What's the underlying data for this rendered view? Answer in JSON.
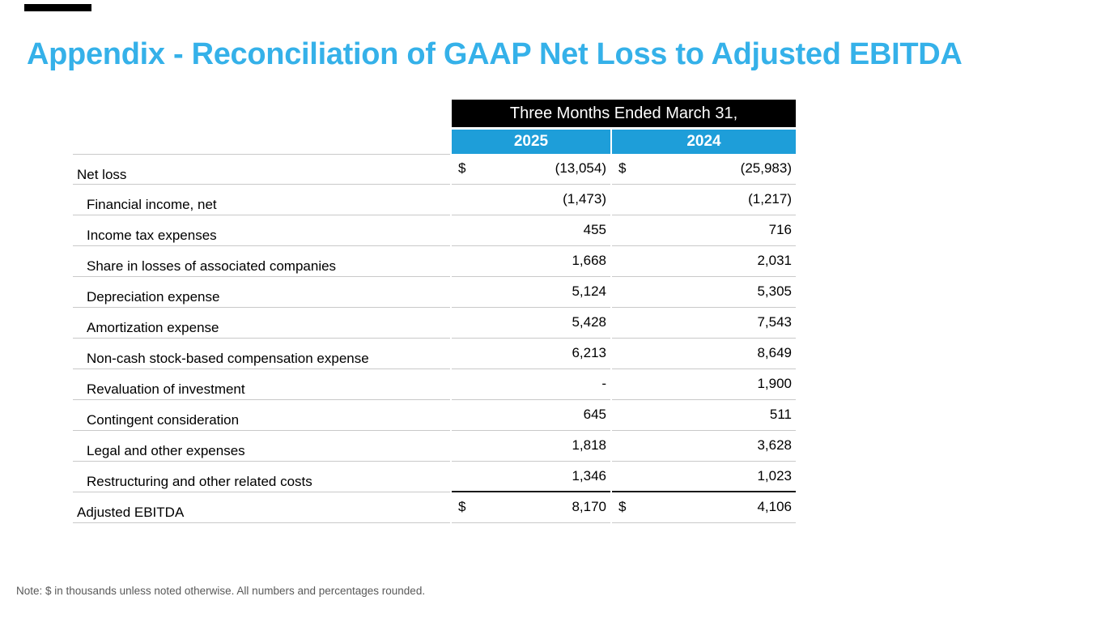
{
  "slide": {
    "title": "Appendix - Reconciliation of GAAP Net Loss to Adjusted EBITDA",
    "footnote": "Note: $ in thousands unless noted otherwise. All numbers and percentages rounded.",
    "colors": {
      "title_color": "#35B1E9",
      "period_header_bg": "#000000",
      "period_header_text": "#FFFFFF",
      "year_header_bg": "#1E9ED9",
      "year_header_text": "#FFFFFF",
      "grid_line": "#C9C9C9",
      "total_rule": "#1A1A1A",
      "footnote_color": "#595959"
    }
  },
  "table": {
    "period_header": "Three Months Ended March 31,",
    "currency_symbol": "$",
    "columns": [
      "2025",
      "2024"
    ],
    "rows": [
      {
        "label": "Net loss",
        "indent": false,
        "dollar": true,
        "total_rule": false,
        "v2025": "(13,054)",
        "v2024": "(25,983)"
      },
      {
        "label": "Financial income, net",
        "indent": true,
        "dollar": false,
        "total_rule": false,
        "v2025": "(1,473)",
        "v2024": "(1,217)"
      },
      {
        "label": "Income tax expenses",
        "indent": true,
        "dollar": false,
        "total_rule": false,
        "v2025": "455",
        "v2024": "716"
      },
      {
        "label": "Share in losses of associated companies",
        "indent": true,
        "dollar": false,
        "total_rule": false,
        "v2025": "1,668",
        "v2024": "2,031"
      },
      {
        "label": "Depreciation expense",
        "indent": true,
        "dollar": false,
        "total_rule": false,
        "v2025": "5,124",
        "v2024": "5,305"
      },
      {
        "label": "Amortization expense",
        "indent": true,
        "dollar": false,
        "total_rule": false,
        "v2025": "5,428",
        "v2024": "7,543"
      },
      {
        "label": "Non-cash stock-based compensation expense",
        "indent": true,
        "dollar": false,
        "total_rule": false,
        "v2025": "6,213",
        "v2024": "8,649"
      },
      {
        "label": "Revaluation of investment",
        "indent": true,
        "dollar": false,
        "total_rule": false,
        "v2025": "-",
        "v2024": "1,900"
      },
      {
        "label": "Contingent consideration",
        "indent": true,
        "dollar": false,
        "total_rule": false,
        "v2025": "645",
        "v2024": "511"
      },
      {
        "label": "Legal and other expenses",
        "indent": true,
        "dollar": false,
        "total_rule": false,
        "v2025": "1,818",
        "v2024": "3,628"
      },
      {
        "label": "Restructuring and other related costs",
        "indent": true,
        "dollar": false,
        "total_rule": true,
        "v2025": "1,346",
        "v2024": "1,023"
      },
      {
        "label": "Adjusted EBITDA",
        "indent": false,
        "dollar": true,
        "total_rule": false,
        "v2025": "8,170",
        "v2024": "4,106"
      }
    ]
  }
}
